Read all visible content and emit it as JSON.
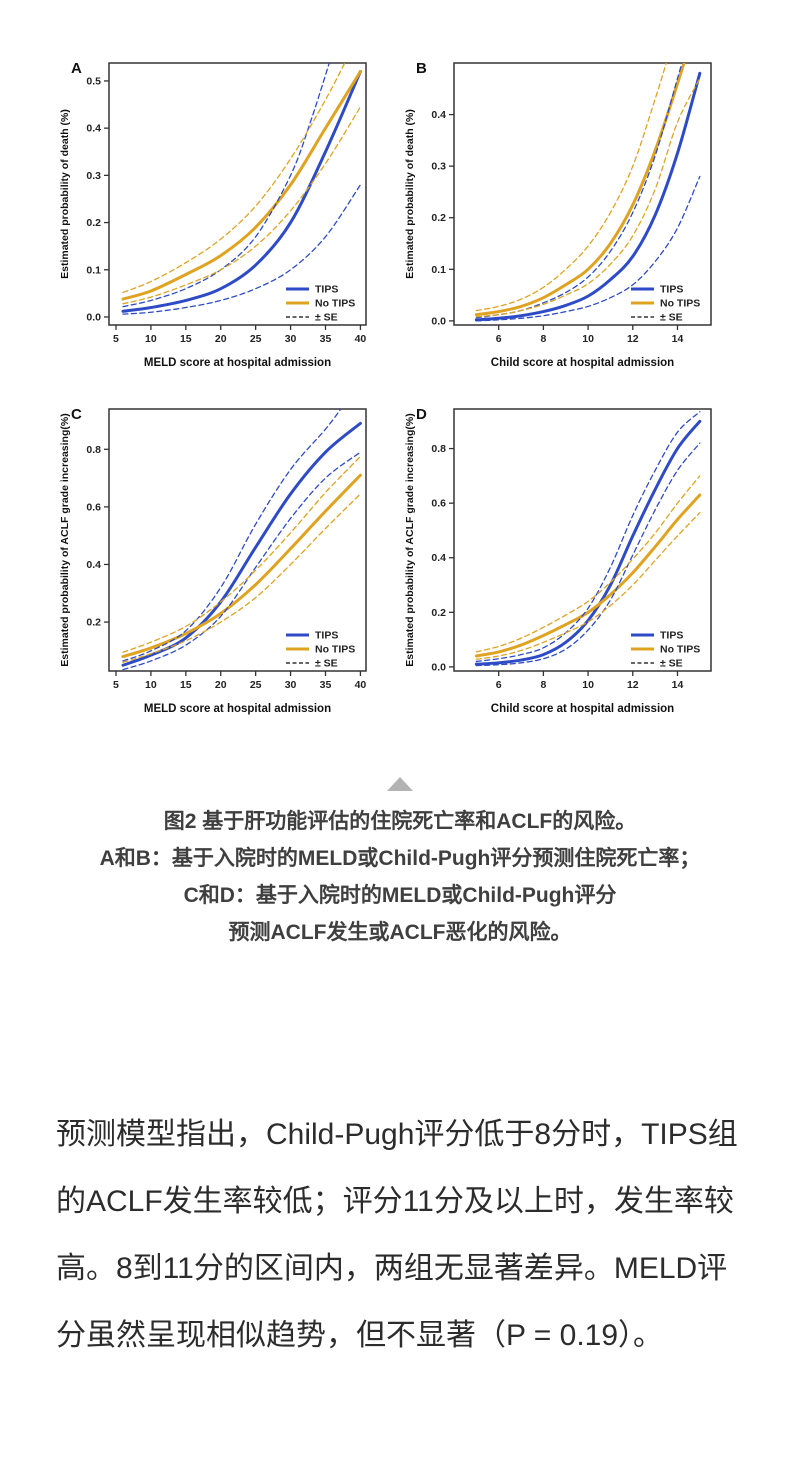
{
  "colors": {
    "tips": "#2e4bc6",
    "no_tips": "#dfa321",
    "se": "#333333",
    "frame": "#333333",
    "marker": "#b3b3b3"
  },
  "figure": {
    "marker_icon": "triangle-up"
  },
  "caption": {
    "lines": [
      "图2 基于肝功能评估的住院死亡率和ACLF的风险。",
      "A和B：基于入院时的MELD或Child-Pugh评分预测住院死亡率；",
      "C和D：基于入院时的MELD或Child-Pugh评分",
      "预测ACLF发生或ACLF恶化的风险。"
    ]
  },
  "body": {
    "text": "预测模型指出，Child-Pugh评分低于8分时，TIPS组的ACLF发生率较低；评分11分及以上时，发生率较高。8到11分的区间内，两组无显著差异。MELD评分虽然呈现相似趋势，但不显著（P = 0.19）。"
  },
  "chart_data": [
    {
      "type": "line",
      "panel": "A",
      "title": "",
      "xlabel": "MELD score at hospital admission",
      "ylabel": "Estimated probability of death (%)",
      "xlim": [
        4.0,
        40.8
      ],
      "ylim": [
        -0.017,
        0.538
      ],
      "xticks": [
        "5",
        "10",
        "15",
        "20",
        "25",
        "30",
        "35",
        "40"
      ],
      "yticks": [
        "0.0",
        "0.1",
        "0.2",
        "0.3",
        "0.4",
        "0.5"
      ],
      "grid": false,
      "legend_position": "bottom-right",
      "legend": [
        {
          "label": "TIPS",
          "color": "#2e4bc6",
          "dash": false
        },
        {
          "label": "No TIPS",
          "color": "#dfa321",
          "dash": false
        },
        {
          "label": "± SE",
          "color": "#333333",
          "dash": true
        }
      ],
      "series": [
        {
          "name": "TIPS",
          "role": "main",
          "color": "#2e4bc6",
          "dash": false,
          "width": 3,
          "x": [
            6,
            10,
            15,
            20,
            25,
            30,
            35,
            40
          ],
          "y": [
            0.012,
            0.02,
            0.035,
            0.06,
            0.11,
            0.2,
            0.35,
            0.52
          ]
        },
        {
          "name": "No TIPS",
          "role": "main",
          "color": "#dfa321",
          "dash": false,
          "width": 3,
          "x": [
            6,
            10,
            15,
            20,
            25,
            30,
            35,
            40
          ],
          "y": [
            0.038,
            0.055,
            0.09,
            0.13,
            0.19,
            0.28,
            0.4,
            0.52
          ]
        },
        {
          "name": "TIPS upper SE",
          "role": "se",
          "color": "#2e4bc6",
          "dash": true,
          "width": 1.3,
          "x": [
            6,
            10,
            15,
            20,
            25,
            30,
            33,
            36
          ],
          "y": [
            0.022,
            0.035,
            0.06,
            0.1,
            0.17,
            0.3,
            0.42,
            0.56
          ]
        },
        {
          "name": "TIPS lower SE",
          "role": "se",
          "color": "#2e4bc6",
          "dash": true,
          "width": 1.3,
          "x": [
            6,
            10,
            15,
            20,
            25,
            30,
            35,
            40
          ],
          "y": [
            0.006,
            0.01,
            0.02,
            0.035,
            0.06,
            0.1,
            0.17,
            0.28
          ]
        },
        {
          "name": "No TIPS upper SE",
          "role": "se",
          "color": "#dfa321",
          "dash": true,
          "width": 1.3,
          "x": [
            6,
            10,
            15,
            20,
            25,
            30,
            35,
            38.5
          ],
          "y": [
            0.052,
            0.075,
            0.115,
            0.165,
            0.235,
            0.335,
            0.46,
            0.56
          ]
        },
        {
          "name": "No TIPS lower SE",
          "role": "se",
          "color": "#dfa321",
          "dash": true,
          "width": 1.3,
          "x": [
            6,
            10,
            15,
            20,
            25,
            30,
            35,
            40
          ],
          "y": [
            0.028,
            0.042,
            0.068,
            0.1,
            0.15,
            0.225,
            0.325,
            0.445
          ]
        }
      ]
    },
    {
      "type": "line",
      "panel": "B",
      "title": "",
      "xlabel": "Child score at hospital admission",
      "ylabel": "Estimated probability of death (%)",
      "xlim": [
        4.0,
        15.5
      ],
      "ylim": [
        -0.008,
        0.5
      ],
      "xticks": [
        "6",
        "8",
        "10",
        "12",
        "14"
      ],
      "yticks": [
        "0.0",
        "0.1",
        "0.2",
        "0.3",
        "0.4"
      ],
      "grid": false,
      "legend_position": "bottom-right",
      "legend": [
        {
          "label": "TIPS",
          "color": "#2e4bc6",
          "dash": false
        },
        {
          "label": "No TIPS",
          "color": "#dfa321",
          "dash": false
        },
        {
          "label": "± SE",
          "color": "#333333",
          "dash": true
        }
      ],
      "series": [
        {
          "name": "TIPS",
          "role": "main",
          "color": "#2e4bc6",
          "dash": false,
          "width": 3,
          "x": [
            5,
            6,
            7,
            8,
            9,
            10,
            11,
            12,
            13,
            14,
            15
          ],
          "y": [
            0.002,
            0.005,
            0.01,
            0.018,
            0.03,
            0.048,
            0.08,
            0.125,
            0.205,
            0.325,
            0.48
          ]
        },
        {
          "name": "No TIPS",
          "role": "main",
          "color": "#dfa321",
          "dash": false,
          "width": 3,
          "x": [
            5,
            6,
            7,
            8,
            9,
            10,
            11,
            12,
            13,
            14,
            15
          ],
          "y": [
            0.012,
            0.018,
            0.028,
            0.045,
            0.07,
            0.1,
            0.15,
            0.225,
            0.33,
            0.46,
            0.6
          ]
        },
        {
          "name": "TIPS upper SE",
          "role": "se",
          "color": "#2e4bc6",
          "dash": true,
          "width": 1.3,
          "x": [
            5,
            6,
            7,
            8,
            9,
            10,
            11,
            12,
            13,
            14,
            15
          ],
          "y": [
            0.006,
            0.012,
            0.02,
            0.035,
            0.055,
            0.085,
            0.135,
            0.21,
            0.32,
            0.47,
            0.62
          ]
        },
        {
          "name": "TIPS lower SE",
          "role": "se",
          "color": "#2e4bc6",
          "dash": true,
          "width": 1.3,
          "x": [
            5,
            6,
            7,
            8,
            9,
            10,
            11,
            12,
            13,
            14,
            15
          ],
          "y": [
            0.0,
            0.002,
            0.005,
            0.01,
            0.018,
            0.028,
            0.045,
            0.07,
            0.115,
            0.18,
            0.28
          ]
        },
        {
          "name": "No TIPS upper SE",
          "role": "se",
          "color": "#dfa321",
          "dash": true,
          "width": 1.3,
          "x": [
            5,
            6,
            7,
            8,
            9,
            10,
            11,
            12,
            13,
            14,
            15
          ],
          "y": [
            0.02,
            0.028,
            0.042,
            0.065,
            0.1,
            0.145,
            0.21,
            0.3,
            0.43,
            0.57,
            0.7
          ]
        },
        {
          "name": "No TIPS lower SE",
          "role": "se",
          "color": "#dfa321",
          "dash": true,
          "width": 1.3,
          "x": [
            5,
            6,
            7,
            8,
            9,
            10,
            11,
            12,
            13,
            14,
            15
          ],
          "y": [
            0.008,
            0.012,
            0.02,
            0.032,
            0.05,
            0.072,
            0.11,
            0.165,
            0.255,
            0.385,
            0.47
          ]
        }
      ]
    },
    {
      "type": "line",
      "panel": "C",
      "title": "",
      "xlabel": "MELD score at hospital admission",
      "ylabel": "Estimated probability of ACLF grade increasing(%)",
      "xlim": [
        4.0,
        40.8
      ],
      "ylim": [
        0.03,
        0.94
      ],
      "xticks": [
        "5",
        "10",
        "15",
        "20",
        "25",
        "30",
        "35",
        "40"
      ],
      "yticks": [
        "0.2",
        "0.4",
        "0.6",
        "0.8"
      ],
      "grid": false,
      "legend_position": "bottom-right",
      "legend": [
        {
          "label": "TIPS",
          "color": "#2e4bc6",
          "dash": false
        },
        {
          "label": "No TIPS",
          "color": "#dfa321",
          "dash": false
        },
        {
          "label": "± SE",
          "color": "#333333",
          "dash": true
        }
      ],
      "series": [
        {
          "name": "TIPS",
          "role": "main",
          "color": "#2e4bc6",
          "dash": false,
          "width": 3,
          "x": [
            6,
            10,
            15,
            20,
            25,
            30,
            35,
            40
          ],
          "y": [
            0.05,
            0.085,
            0.145,
            0.27,
            0.46,
            0.645,
            0.79,
            0.89
          ]
        },
        {
          "name": "No TIPS",
          "role": "main",
          "color": "#dfa321",
          "dash": false,
          "width": 3,
          "x": [
            6,
            10,
            15,
            20,
            25,
            30,
            35,
            40
          ],
          "y": [
            0.08,
            0.11,
            0.16,
            0.23,
            0.33,
            0.455,
            0.585,
            0.71
          ]
        },
        {
          "name": "TIPS upper SE",
          "role": "se",
          "color": "#2e4bc6",
          "dash": true,
          "width": 1.3,
          "x": [
            6,
            10,
            15,
            20,
            25,
            30,
            35,
            37.5
          ],
          "y": [
            0.065,
            0.1,
            0.17,
            0.32,
            0.54,
            0.73,
            0.87,
            0.95
          ]
        },
        {
          "name": "TIPS lower SE",
          "role": "se",
          "color": "#2e4bc6",
          "dash": true,
          "width": 1.3,
          "x": [
            6,
            10,
            15,
            20,
            25,
            30,
            35,
            40
          ],
          "y": [
            0.035,
            0.065,
            0.12,
            0.22,
            0.39,
            0.56,
            0.7,
            0.79
          ]
        },
        {
          "name": "No TIPS upper SE",
          "role": "se",
          "color": "#dfa321",
          "dash": true,
          "width": 1.3,
          "x": [
            6,
            10,
            15,
            20,
            25,
            30,
            35,
            40
          ],
          "y": [
            0.095,
            0.13,
            0.185,
            0.27,
            0.38,
            0.51,
            0.65,
            0.775
          ]
        },
        {
          "name": "No TIPS lower SE",
          "role": "se",
          "color": "#dfa321",
          "dash": true,
          "width": 1.3,
          "x": [
            6,
            10,
            15,
            20,
            25,
            30,
            35,
            40
          ],
          "y": [
            0.06,
            0.09,
            0.135,
            0.2,
            0.285,
            0.4,
            0.525,
            0.645
          ]
        }
      ]
    },
    {
      "type": "line",
      "panel": "D",
      "title": "",
      "xlabel": "Child score at hospital admission",
      "ylabel": "Estimated probability of ACLF grade increasing(%)",
      "xlim": [
        4.0,
        15.5
      ],
      "ylim": [
        -0.015,
        0.945
      ],
      "xticks": [
        "6",
        "8",
        "10",
        "12",
        "14"
      ],
      "yticks": [
        "0.0",
        "0.2",
        "0.4",
        "0.6",
        "0.8"
      ],
      "grid": false,
      "legend_position": "bottom-right",
      "legend": [
        {
          "label": "TIPS",
          "color": "#2e4bc6",
          "dash": false
        },
        {
          "label": "No TIPS",
          "color": "#dfa321",
          "dash": false
        },
        {
          "label": "± SE",
          "color": "#333333",
          "dash": true
        }
      ],
      "series": [
        {
          "name": "TIPS",
          "role": "main",
          "color": "#2e4bc6",
          "dash": false,
          "width": 3,
          "x": [
            5,
            6,
            7,
            8,
            9,
            10,
            11,
            12,
            13,
            14,
            15
          ],
          "y": [
            0.01,
            0.015,
            0.025,
            0.045,
            0.09,
            0.17,
            0.3,
            0.48,
            0.65,
            0.8,
            0.9
          ]
        },
        {
          "name": "No TIPS",
          "role": "main",
          "color": "#dfa321",
          "dash": false,
          "width": 3,
          "x": [
            5,
            6,
            7,
            8,
            9,
            10,
            11,
            12,
            13,
            14,
            15
          ],
          "y": [
            0.04,
            0.055,
            0.08,
            0.115,
            0.155,
            0.2,
            0.265,
            0.345,
            0.44,
            0.54,
            0.63
          ]
        },
        {
          "name": "TIPS upper SE",
          "role": "se",
          "color": "#2e4bc6",
          "dash": true,
          "width": 1.3,
          "x": [
            5,
            6,
            7,
            8,
            9,
            10,
            11,
            12,
            13,
            14,
            15
          ],
          "y": [
            0.02,
            0.03,
            0.045,
            0.07,
            0.125,
            0.215,
            0.365,
            0.555,
            0.72,
            0.86,
            0.935
          ]
        },
        {
          "name": "TIPS lower SE",
          "role": "se",
          "color": "#2e4bc6",
          "dash": true,
          "width": 1.3,
          "x": [
            5,
            6,
            7,
            8,
            9,
            10,
            11,
            12,
            13,
            14,
            15
          ],
          "y": [
            0.005,
            0.008,
            0.015,
            0.03,
            0.065,
            0.135,
            0.245,
            0.41,
            0.575,
            0.72,
            0.82
          ]
        },
        {
          "name": "No TIPS upper SE",
          "role": "se",
          "color": "#dfa321",
          "dash": true,
          "width": 1.3,
          "x": [
            5,
            6,
            7,
            8,
            9,
            10,
            11,
            12,
            13,
            14,
            15
          ],
          "y": [
            0.055,
            0.075,
            0.105,
            0.145,
            0.19,
            0.24,
            0.31,
            0.395,
            0.49,
            0.6,
            0.7
          ]
        },
        {
          "name": "No TIPS lower SE",
          "role": "se",
          "color": "#dfa321",
          "dash": true,
          "width": 1.3,
          "x": [
            5,
            6,
            7,
            8,
            9,
            10,
            11,
            12,
            13,
            14,
            15
          ],
          "y": [
            0.028,
            0.04,
            0.06,
            0.09,
            0.125,
            0.165,
            0.225,
            0.3,
            0.39,
            0.48,
            0.565
          ]
        }
      ]
    }
  ]
}
